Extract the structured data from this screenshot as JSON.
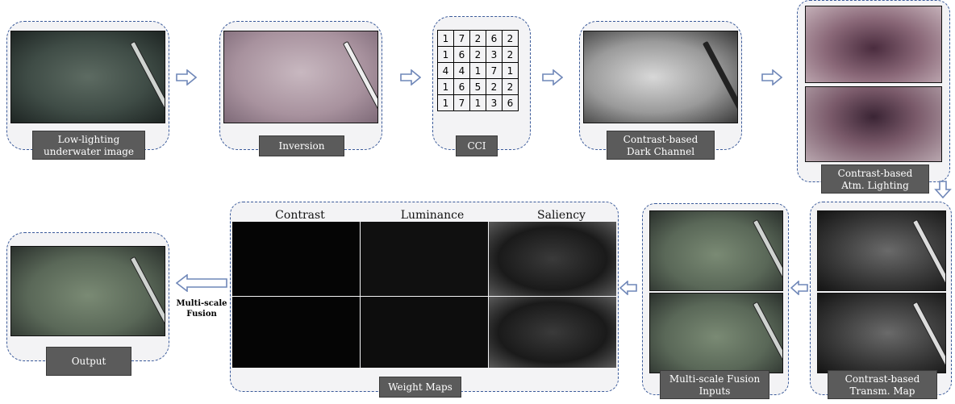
{
  "stages": {
    "low_lighting": "Low-lighting underwater image",
    "inversion": "Inversion",
    "cci": "CCI",
    "dark_channel": "Contrast-based Dark Channel",
    "atm_lighting": "Contrast-based Atm. Lighting",
    "transm_map": "Contrast-based Transm. Map",
    "fusion_inputs": "Multi-scale Fusion Inputs",
    "weight_maps": "Weight Maps",
    "output": "Output"
  },
  "weight_columns": [
    "Contrast",
    "Luminance",
    "Saliency"
  ],
  "fusion_step": "Multi-scale Fusion",
  "cci_grid": [
    [
      "1",
      "7",
      "2",
      "6",
      "2"
    ],
    [
      "1",
      "6",
      "2",
      "3",
      "2"
    ],
    [
      "4",
      "4",
      "1",
      "7",
      "1"
    ],
    [
      "1",
      "6",
      "5",
      "2",
      "2"
    ],
    [
      "1",
      "7",
      "1",
      "3",
      "6"
    ]
  ],
  "colors": {
    "frame": "#3a5a9a",
    "caption_bg": "#5b5b5b",
    "arrow": "#6f87b8"
  }
}
